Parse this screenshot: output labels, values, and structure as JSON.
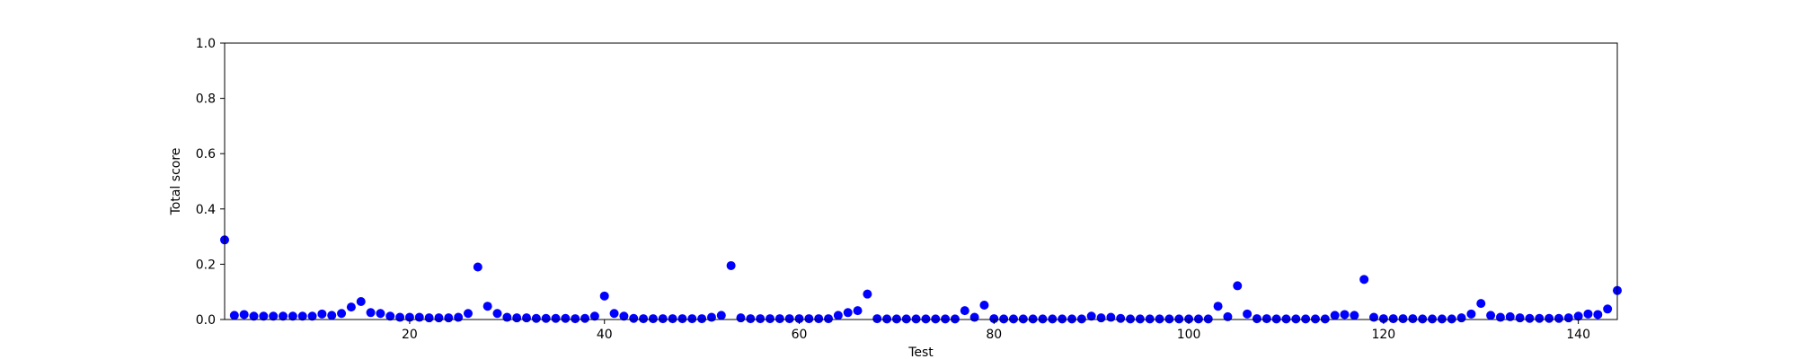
{
  "chart_data": {
    "type": "scatter",
    "title": "",
    "xlabel": "Test",
    "ylabel": "Total score",
    "xlim": [
      1,
      144
    ],
    "ylim": [
      0.0,
      1.0
    ],
    "xticks": [
      20,
      40,
      60,
      80,
      100,
      120,
      140
    ],
    "xtick_labels": [
      "20",
      "40",
      "60",
      "80",
      "100",
      "120",
      "140"
    ],
    "yticks": [
      0.0,
      0.2,
      0.4,
      0.6,
      0.8,
      1.0
    ],
    "ytick_labels": [
      "0.0",
      "0.2",
      "0.4",
      "0.6",
      "0.8",
      "1.0"
    ],
    "grid": false,
    "legend": "none",
    "marker_color": "#0000ff",
    "series": [
      {
        "x": [
          1,
          2,
          3,
          4,
          5,
          6,
          7,
          8,
          9,
          10,
          11,
          12,
          13,
          14,
          15,
          16,
          17,
          18,
          19,
          20,
          21,
          22,
          23,
          24,
          25,
          26,
          27,
          28,
          29,
          30,
          31,
          32,
          33,
          34,
          35,
          36,
          37,
          38,
          39,
          40,
          41,
          42,
          43,
          44,
          45,
          46,
          47,
          48,
          49,
          50,
          51,
          52,
          53,
          54,
          55,
          56,
          57,
          58,
          59,
          60,
          61,
          62,
          63,
          64,
          65,
          66,
          67,
          68,
          69,
          70,
          71,
          72,
          73,
          74,
          75,
          76,
          77,
          78,
          79,
          80,
          81,
          82,
          83,
          84,
          85,
          86,
          87,
          88,
          89,
          90,
          91,
          92,
          93,
          94,
          95,
          96,
          97,
          98,
          99,
          100,
          101,
          102,
          103,
          104,
          105,
          106,
          107,
          108,
          109,
          110,
          111,
          112,
          113,
          114,
          115,
          116,
          117,
          118,
          119,
          120,
          121,
          122,
          123,
          124,
          125,
          126,
          127,
          128,
          129,
          130,
          131,
          132,
          133,
          134,
          135,
          136,
          137,
          138,
          139,
          140,
          141,
          142,
          143,
          144
        ],
        "y": [
          0.288,
          0.015,
          0.018,
          0.012,
          0.012,
          0.012,
          0.012,
          0.012,
          0.012,
          0.012,
          0.02,
          0.015,
          0.022,
          0.045,
          0.065,
          0.025,
          0.022,
          0.012,
          0.008,
          0.008,
          0.008,
          0.006,
          0.006,
          0.006,
          0.008,
          0.022,
          0.19,
          0.048,
          0.022,
          0.008,
          0.006,
          0.006,
          0.004,
          0.004,
          0.004,
          0.004,
          0.003,
          0.004,
          0.012,
          0.085,
          0.022,
          0.012,
          0.004,
          0.003,
          0.003,
          0.003,
          0.003,
          0.003,
          0.003,
          0.003,
          0.008,
          0.015,
          0.195,
          0.006,
          0.003,
          0.003,
          0.003,
          0.003,
          0.003,
          0.003,
          0.003,
          0.003,
          0.003,
          0.015,
          0.025,
          0.032,
          0.092,
          0.003,
          0.002,
          0.002,
          0.002,
          0.002,
          0.002,
          0.002,
          0.002,
          0.002,
          0.032,
          0.008,
          0.052,
          0.003,
          0.002,
          0.002,
          0.002,
          0.002,
          0.002,
          0.002,
          0.002,
          0.002,
          0.002,
          0.012,
          0.006,
          0.008,
          0.004,
          0.002,
          0.002,
          0.002,
          0.002,
          0.002,
          0.002,
          0.002,
          0.002,
          0.002,
          0.048,
          0.01,
          0.122,
          0.02,
          0.003,
          0.003,
          0.002,
          0.002,
          0.002,
          0.002,
          0.002,
          0.002,
          0.015,
          0.018,
          0.015,
          0.145,
          0.008,
          0.003,
          0.003,
          0.003,
          0.003,
          0.002,
          0.002,
          0.002,
          0.002,
          0.006,
          0.02,
          0.058,
          0.015,
          0.008,
          0.01,
          0.006,
          0.004,
          0.004,
          0.004,
          0.004,
          0.006,
          0.012,
          0.02,
          0.018,
          0.038,
          0.105
        ]
      }
    ]
  }
}
